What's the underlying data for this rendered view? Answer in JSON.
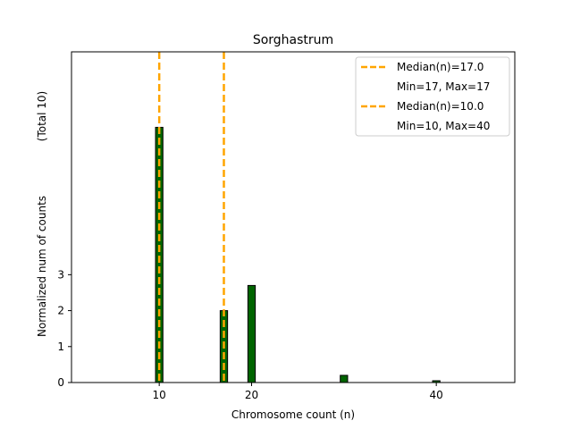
{
  "chart_data": {
    "type": "bar",
    "title": "Sorghastrum",
    "xlabel": "Chromosome count (n)",
    "ylabel": "Normalized num of counts",
    "ylabel_note": "(Total 10)",
    "xlim": [
      0.5,
      48.5
    ],
    "ylim": [
      0,
      9.2
    ],
    "x_ticks": [
      10,
      20,
      40
    ],
    "y_ticks": [
      0,
      1,
      2,
      3
    ],
    "bar_color": "#006400",
    "bar_edge_color": "#000000",
    "bar_width": 0.8,
    "bars": [
      {
        "x": 10,
        "value": 7.1
      },
      {
        "x": 17,
        "value": 2.0
      },
      {
        "x": 20,
        "value": 2.7
      },
      {
        "x": 30,
        "value": 0.2
      },
      {
        "x": 40,
        "value": 0.05
      }
    ],
    "median_lines": [
      {
        "x": 17,
        "label": "Median(n)=17.0",
        "range_label": "Min=17, Max=17",
        "color": "#FFA500"
      },
      {
        "x": 10,
        "label": "Median(n)=10.0",
        "range_label": "Min=10, Max=40",
        "color": "#FFA500"
      }
    ]
  }
}
